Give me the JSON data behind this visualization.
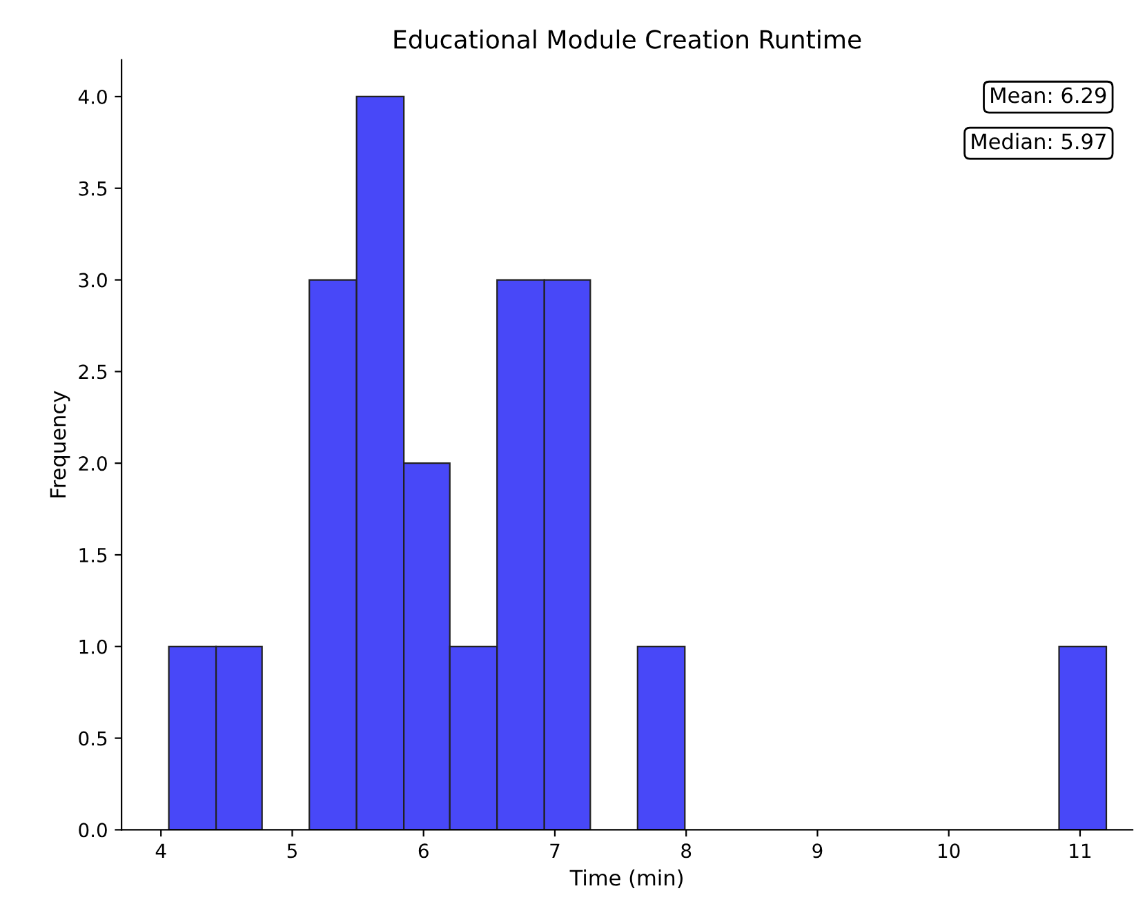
{
  "chart_data": {
    "type": "histogram",
    "title": "Educational Module Creation Runtime",
    "xlabel": "Time (min)",
    "ylabel": "Frequency",
    "bins": [
      4.06,
      4.42,
      4.77,
      5.13,
      5.49,
      5.85,
      6.2,
      6.56,
      6.92,
      7.27,
      7.63,
      7.99,
      10.84,
      11.2
    ],
    "values": [
      1,
      1,
      0,
      3,
      4,
      2,
      1,
      3,
      3,
      0,
      1,
      0,
      1
    ],
    "color": "#4848f8",
    "xlim": [
      3.7,
      11.4
    ],
    "xticks": [
      4,
      5,
      6,
      7,
      8,
      9,
      10,
      11
    ],
    "ylim": [
      0,
      4.2
    ],
    "yticks": [
      {
        "value": 0,
        "label": "0.0"
      },
      {
        "value": 0.5,
        "label": "0.5"
      },
      {
        "value": 1,
        "label": "1.0"
      },
      {
        "value": 1.5,
        "label": "1.5"
      },
      {
        "value": 2,
        "label": "2.0"
      },
      {
        "value": 2.5,
        "label": "2.5"
      },
      {
        "value": 3,
        "label": "3.0"
      },
      {
        "value": 3.5,
        "label": "3.5"
      },
      {
        "value": 4,
        "label": "4.0"
      }
    ],
    "annotations": [
      "Mean: 6.29",
      "Median: 5.97"
    ],
    "grid": false
  }
}
